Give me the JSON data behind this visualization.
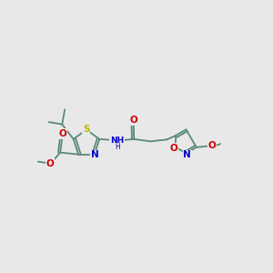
{
  "bg_color": "#e8e8e8",
  "bond_color": "#5a8a78",
  "bond_width": 1.3,
  "S_color": "#b8b800",
  "N_color": "#0000cc",
  "O_color": "#cc0000",
  "figsize": [
    3.0,
    3.0
  ],
  "dpi": 100,
  "xlim": [
    -1.0,
    11.0
  ],
  "ylim": [
    2.5,
    8.5
  ]
}
